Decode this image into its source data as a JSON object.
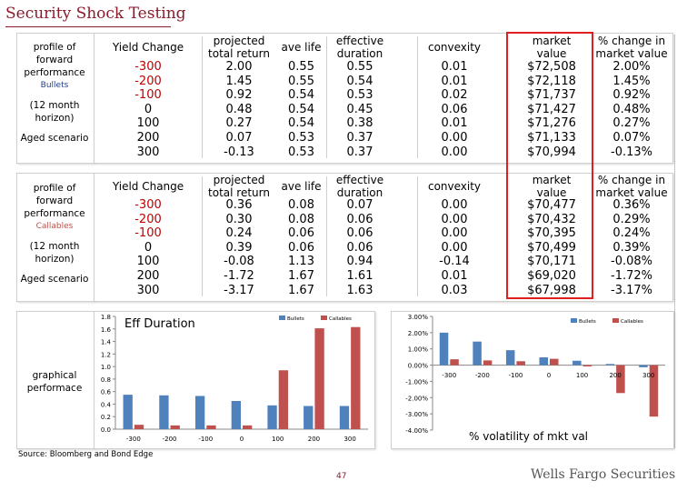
{
  "page": {
    "title": "Security Shock Testing",
    "source": "Source: Bloomberg and Bond Edge",
    "page_number": "47",
    "brand": "Wells Fargo Securities"
  },
  "bullets": {
    "side": [
      "profile of",
      "forward",
      "performance",
      "Bullets",
      "(12 month",
      "horizon)",
      "Aged scenario"
    ],
    "headers": {
      "yield_change": "Yield Change",
      "projected": [
        "projected",
        "total return"
      ],
      "ave_life": "ave life",
      "effective": [
        "effective",
        "duration"
      ],
      "convexity": "convexity",
      "market": [
        "market",
        "value"
      ],
      "pct_change": [
        "% change in",
        "market value"
      ]
    },
    "rows": [
      [
        "-300",
        "2.00",
        "0.55",
        "0.55",
        "0.01",
        "$72,508",
        "2.00%"
      ],
      [
        "-200",
        "1.45",
        "0.55",
        "0.54",
        "0.01",
        "$72,118",
        "1.45%"
      ],
      [
        "-100",
        "0.92",
        "0.54",
        "0.53",
        "0.02",
        "$71,737",
        "0.92%"
      ],
      [
        "0",
        "0.48",
        "0.54",
        "0.45",
        "0.06",
        "$71,427",
        "0.48%"
      ],
      [
        "100",
        "0.27",
        "0.54",
        "0.38",
        "0.01",
        "$71,276",
        "0.27%"
      ],
      [
        "200",
        "0.07",
        "0.53",
        "0.37",
        "0.00",
        "$71,133",
        "0.07%"
      ],
      [
        "300",
        "-0.13",
        "0.53",
        "0.37",
        "0.00",
        "$70,994",
        "-0.13%"
      ]
    ]
  },
  "callables": {
    "side": [
      "profile of",
      "forward",
      "performance",
      "Callables",
      "(12 month",
      "horizon)",
      "Aged scenario"
    ],
    "headers": {
      "yield_change": "Yield Change",
      "projected": [
        "projected",
        "total return"
      ],
      "ave_life": "ave life",
      "effective": [
        "effective",
        "duration"
      ],
      "convexity": "convexity",
      "market": [
        "market",
        "value"
      ],
      "pct_change": [
        "% change in",
        "market value"
      ]
    },
    "rows": [
      [
        "-300",
        "0.36",
        "0.08",
        "0.07",
        "0.00",
        "$70,477",
        "0.36%"
      ],
      [
        "-200",
        "0.30",
        "0.08",
        "0.06",
        "0.00",
        "$70,432",
        "0.29%"
      ],
      [
        "-100",
        "0.24",
        "0.06",
        "0.06",
        "0.00",
        "$70,395",
        "0.24%"
      ],
      [
        "0",
        "0.39",
        "0.06",
        "0.06",
        "0.00",
        "$70,499",
        "0.39%"
      ],
      [
        "100",
        "-0.08",
        "1.13",
        "0.94",
        "-0.14",
        "$70,171",
        "-0.08%"
      ],
      [
        "200",
        "-1.72",
        "1.67",
        "1.61",
        "0.01",
        "$69,020",
        "-1.72%"
      ],
      [
        "300",
        "-3.17",
        "1.67",
        "1.63",
        "0.03",
        "$67,998",
        "-3.17%"
      ]
    ]
  },
  "graphical": {
    "side": [
      "graphical",
      "performace"
    ]
  },
  "colors": {
    "bullets": "#4f81bd",
    "callables": "#c0504d",
    "accent": "#8b1a2b",
    "highlight": "#e02020"
  },
  "chart_data": [
    {
      "type": "bar",
      "title": "Eff Duration",
      "categories": [
        "-300",
        "-200",
        "-100",
        "0",
        "100",
        "200",
        "300"
      ],
      "series": [
        {
          "name": "Bullets",
          "values": [
            0.55,
            0.54,
            0.53,
            0.45,
            0.38,
            0.37,
            0.37
          ]
        },
        {
          "name": "Callables",
          "values": [
            0.07,
            0.06,
            0.06,
            0.06,
            0.94,
            1.61,
            1.63
          ]
        }
      ],
      "ylim": [
        0,
        1.8
      ],
      "yticks": [
        "0.0",
        "0.2",
        "0.4",
        "0.6",
        "0.8",
        "1.0",
        "1.2",
        "1.4",
        "1.6",
        "1.8"
      ],
      "legend": "top-right",
      "grid": false
    },
    {
      "type": "bar",
      "title": "% volatility of mkt val",
      "categories": [
        "-300",
        "-200",
        "-100",
        "0",
        "100",
        "200",
        "300"
      ],
      "series": [
        {
          "name": "Bullets",
          "values": [
            2.0,
            1.45,
            0.92,
            0.48,
            0.27,
            0.07,
            -0.13
          ]
        },
        {
          "name": "Callables",
          "values": [
            0.36,
            0.29,
            0.24,
            0.39,
            -0.08,
            -1.72,
            -3.17
          ]
        }
      ],
      "ylim": [
        -4,
        3
      ],
      "yticks": [
        "-4.00%",
        "-3.00%",
        "-2.00%",
        "-1.00%",
        "0.00%",
        "1.00%",
        "2.00%",
        "3.00%"
      ],
      "legend": "top-right",
      "grid": false
    }
  ]
}
